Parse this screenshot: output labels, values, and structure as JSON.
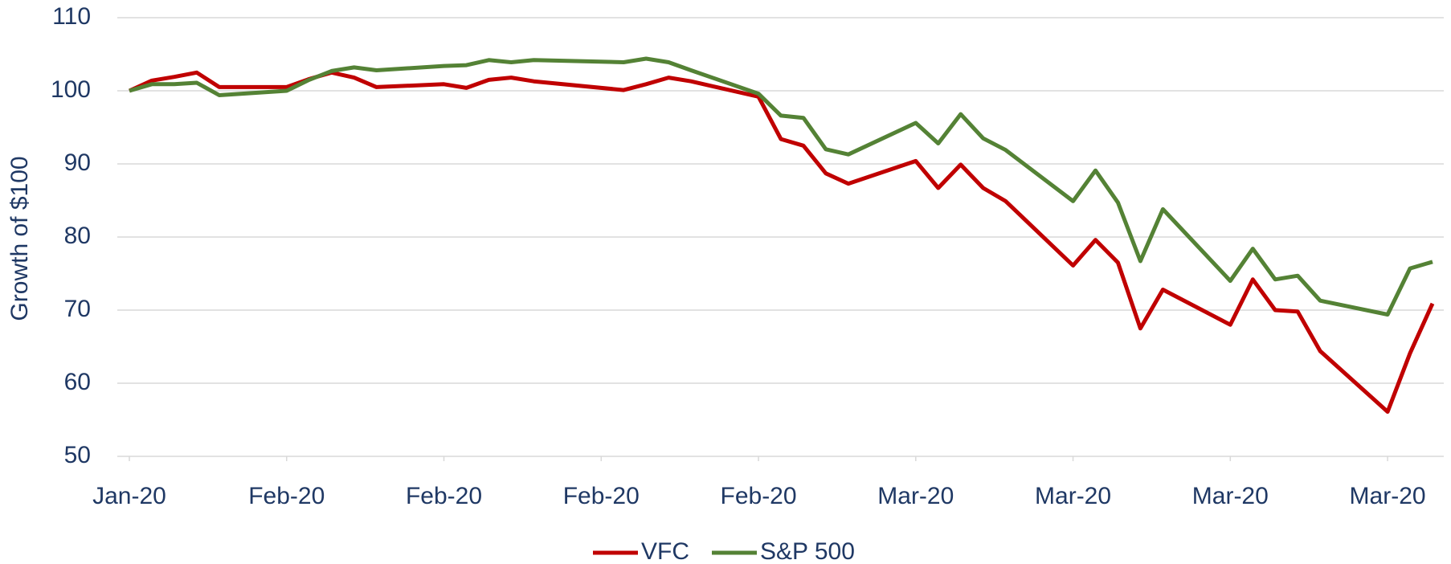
{
  "chart_data": {
    "type": "line",
    "y_label": "Growth of $100",
    "x": [
      0,
      1,
      2,
      3,
      4,
      7,
      8,
      9,
      10,
      11,
      14,
      15,
      16,
      17,
      18,
      22,
      23,
      24,
      25,
      28,
      29,
      30,
      31,
      32,
      35,
      36,
      37,
      38,
      39,
      42,
      43,
      44,
      45,
      46,
      49,
      50,
      51,
      52,
      53,
      56,
      57,
      58
    ],
    "xlim": [
      0,
      58
    ],
    "xticks": [
      {
        "value": 0,
        "label": "Jan-20"
      },
      {
        "value": 7,
        "label": "Feb-20"
      },
      {
        "value": 14,
        "label": "Feb-20"
      },
      {
        "value": 21,
        "label": "Feb-20"
      },
      {
        "value": 28,
        "label": "Feb-20"
      },
      {
        "value": 35,
        "label": "Mar-20"
      },
      {
        "value": 42,
        "label": "Mar-20"
      },
      {
        "value": 49,
        "label": "Mar-20"
      },
      {
        "value": 56,
        "label": "Mar-20"
      }
    ],
    "ylim": [
      50,
      110
    ],
    "yticks": [
      50,
      60,
      70,
      80,
      90,
      100,
      110
    ],
    "grid": true,
    "legend": "bottom",
    "series": [
      {
        "name": "VFC",
        "color": "#c00000",
        "values": [
          100,
          101.4,
          101.9,
          102.5,
          100.5,
          100.5,
          101.6,
          102.5,
          101.8,
          100.5,
          100.9,
          100.4,
          101.5,
          101.8,
          101.3,
          100.1,
          100.9,
          101.8,
          101.3,
          99.2,
          93.4,
          92.5,
          88.7,
          87.3,
          90.4,
          86.7,
          89.9,
          86.7,
          84.9,
          76.1,
          79.6,
          76.5,
          67.5,
          72.8,
          68.0,
          74.2,
          70.0,
          69.8,
          64.4,
          56.1,
          64.1,
          70.9
        ]
      },
      {
        "name": "S&P 500",
        "color": "#548235",
        "values": [
          100,
          100.9,
          100.9,
          101.1,
          99.4,
          100.0,
          101.5,
          102.7,
          103.2,
          102.8,
          103.4,
          103.5,
          104.2,
          103.9,
          104.2,
          103.9,
          104.4,
          103.9,
          102.8,
          99.6,
          96.6,
          96.3,
          92.0,
          91.3,
          95.6,
          92.8,
          96.8,
          93.5,
          91.9,
          84.9,
          89.1,
          84.7,
          76.7,
          83.8,
          74.0,
          78.4,
          74.2,
          74.7,
          71.3,
          69.4,
          75.7,
          76.6
        ]
      }
    ]
  }
}
